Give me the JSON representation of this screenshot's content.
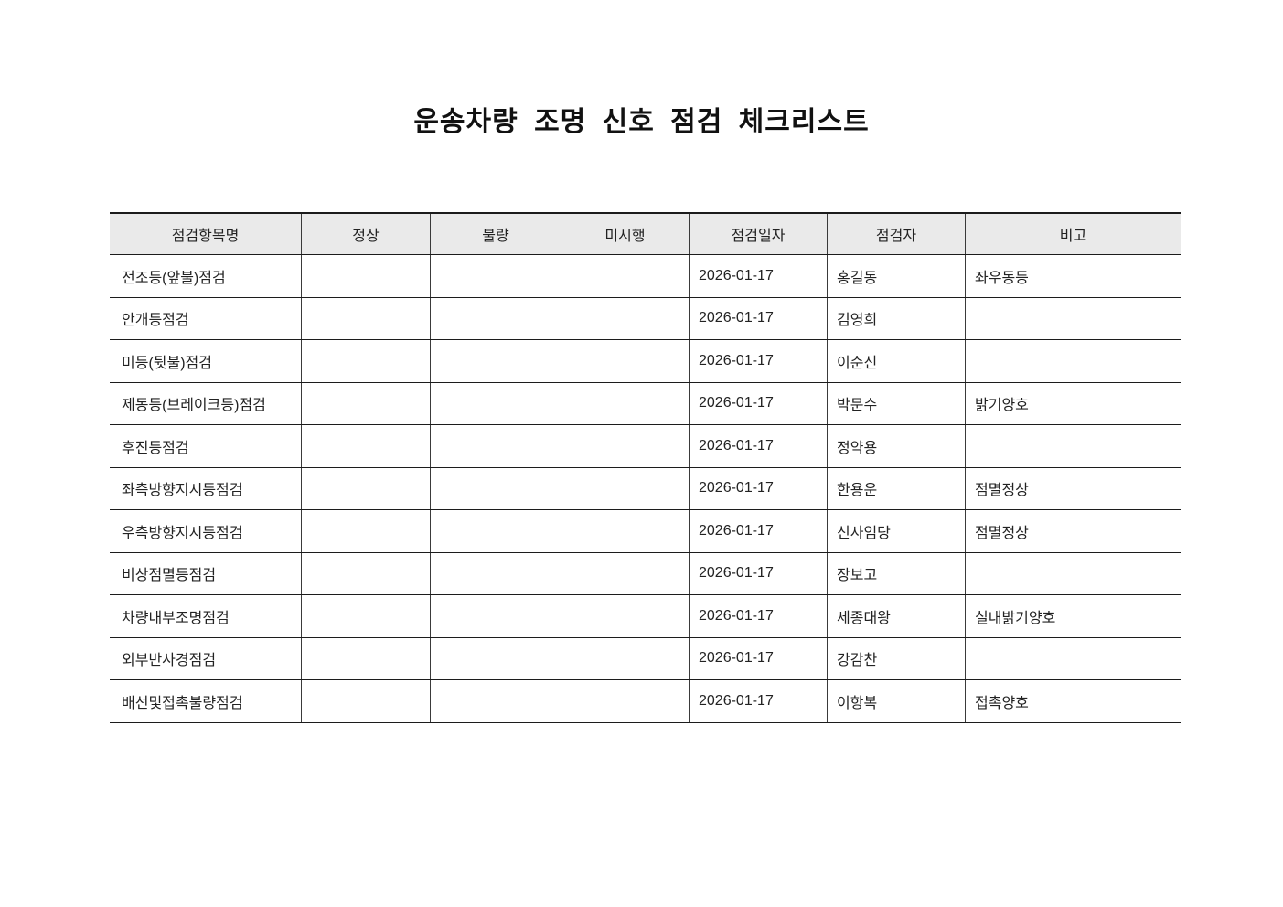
{
  "page": {
    "title": "운송차량 조명 신호 점검 체크리스트"
  },
  "table": {
    "columns": [
      {
        "key": "item",
        "label": "점검항목명"
      },
      {
        "key": "normal",
        "label": "정상"
      },
      {
        "key": "defect",
        "label": "불량"
      },
      {
        "key": "not_done",
        "label": "미시행"
      },
      {
        "key": "date",
        "label": "점검일자"
      },
      {
        "key": "inspector",
        "label": "점검자"
      },
      {
        "key": "remarks",
        "label": "비고"
      }
    ],
    "rows": [
      {
        "item": "전조등(앞불)점검",
        "normal": "",
        "defect": "",
        "not_done": "",
        "date": "2026-01-17",
        "inspector": "홍길동",
        "remarks": "좌우동등"
      },
      {
        "item": "안개등점검",
        "normal": "",
        "defect": "",
        "not_done": "",
        "date": "2026-01-17",
        "inspector": "김영희",
        "remarks": ""
      },
      {
        "item": "미등(뒷불)점검",
        "normal": "",
        "defect": "",
        "not_done": "",
        "date": "2026-01-17",
        "inspector": "이순신",
        "remarks": ""
      },
      {
        "item": "제동등(브레이크등)점검",
        "normal": "",
        "defect": "",
        "not_done": "",
        "date": "2026-01-17",
        "inspector": "박문수",
        "remarks": "밝기양호"
      },
      {
        "item": "후진등점검",
        "normal": "",
        "defect": "",
        "not_done": "",
        "date": "2026-01-17",
        "inspector": "정약용",
        "remarks": ""
      },
      {
        "item": "좌측방향지시등점검",
        "normal": "",
        "defect": "",
        "not_done": "",
        "date": "2026-01-17",
        "inspector": "한용운",
        "remarks": "점멸정상"
      },
      {
        "item": "우측방향지시등점검",
        "normal": "",
        "defect": "",
        "not_done": "",
        "date": "2026-01-17",
        "inspector": "신사임당",
        "remarks": "점멸정상"
      },
      {
        "item": "비상점멸등점검",
        "normal": "",
        "defect": "",
        "not_done": "",
        "date": "2026-01-17",
        "inspector": "장보고",
        "remarks": ""
      },
      {
        "item": "차량내부조명점검",
        "normal": "",
        "defect": "",
        "not_done": "",
        "date": "2026-01-17",
        "inspector": "세종대왕",
        "remarks": "실내밝기양호"
      },
      {
        "item": "외부반사경점검",
        "normal": "",
        "defect": "",
        "not_done": "",
        "date": "2026-01-17",
        "inspector": "강감찬",
        "remarks": ""
      },
      {
        "item": "배선및접촉불량점검",
        "normal": "",
        "defect": "",
        "not_done": "",
        "date": "2026-01-17",
        "inspector": "이항복",
        "remarks": "접촉양호"
      }
    ]
  },
  "colors": {
    "header_bg": "#eaeaea",
    "border_horizontal": "#1c1c1c",
    "border_vertical": "#3a3a3a",
    "text": "#222222",
    "page_bg": "#ffffff"
  }
}
